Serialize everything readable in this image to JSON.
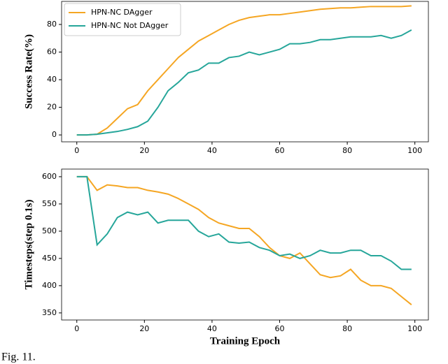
{
  "chart_data": [
    {
      "type": "line",
      "ylabel": "Success Rate(%)",
      "x": [
        0,
        3,
        6,
        9,
        12,
        15,
        18,
        21,
        24,
        27,
        30,
        33,
        36,
        39,
        42,
        45,
        48,
        51,
        54,
        57,
        60,
        63,
        66,
        69,
        72,
        75,
        78,
        81,
        84,
        87,
        90,
        93,
        96,
        99
      ],
      "series": [
        {
          "name": "HPN-NC DAgger",
          "color": "#f5a623",
          "values": [
            0,
            0,
            0.5,
            5,
            12,
            19,
            22,
            32,
            40,
            48,
            56,
            62,
            68,
            72,
            76,
            80,
            83,
            85,
            86,
            87,
            87,
            88,
            89,
            90,
            91,
            91.5,
            92,
            92,
            92.5,
            93,
            93,
            93,
            93,
            93.5
          ]
        },
        {
          "name": "HPN-NC Not DAgger",
          "color": "#26a69a",
          "values": [
            0,
            0,
            0.5,
            1.5,
            2.5,
            4,
            6,
            10,
            20,
            32,
            38,
            45,
            47,
            52,
            52,
            56,
            57,
            60,
            58,
            60,
            62,
            66,
            66,
            67,
            69,
            69,
            70,
            71,
            71,
            71,
            72,
            70,
            72,
            76
          ]
        }
      ],
      "xlim": [
        -4.5,
        104
      ],
      "xticks": [
        0,
        20,
        40,
        60,
        80,
        100
      ],
      "ylim": [
        -5,
        96.7
      ],
      "yticks": [
        0,
        20,
        40,
        60,
        80
      ],
      "legend": "upper left"
    },
    {
      "type": "line",
      "xlabel": "Training Epoch",
      "ylabel": "Timesteps(step 0.1s)",
      "x": [
        0,
        3,
        6,
        9,
        12,
        15,
        18,
        21,
        24,
        27,
        30,
        33,
        36,
        39,
        42,
        45,
        48,
        51,
        54,
        57,
        60,
        63,
        66,
        69,
        72,
        75,
        78,
        81,
        84,
        87,
        90,
        93,
        96,
        99
      ],
      "series": [
        {
          "color": "#f5a623",
          "values": [
            600,
            600,
            575,
            585,
            583,
            580,
            580,
            575,
            572,
            568,
            560,
            550,
            540,
            525,
            515,
            510,
            505,
            505,
            490,
            470,
            455,
            450,
            460,
            440,
            420,
            415,
            418,
            430,
            410,
            400,
            400,
            395,
            380,
            365
          ]
        },
        {
          "color": "#26a69a",
          "values": [
            600,
            600,
            475,
            495,
            525,
            535,
            530,
            535,
            515,
            520,
            520,
            520,
            500,
            490,
            495,
            480,
            478,
            480,
            470,
            465,
            455,
            458,
            450,
            455,
            465,
            460,
            460,
            465,
            465,
            455,
            455,
            445,
            430,
            430
          ]
        }
      ],
      "xlim": [
        -4.5,
        104
      ],
      "xticks": [
        0,
        20,
        40,
        60,
        80,
        100
      ],
      "ylim": [
        337,
        614
      ],
      "yticks": [
        350,
        400,
        450,
        500,
        550,
        600
      ]
    }
  ],
  "caption": "Fig. 11."
}
